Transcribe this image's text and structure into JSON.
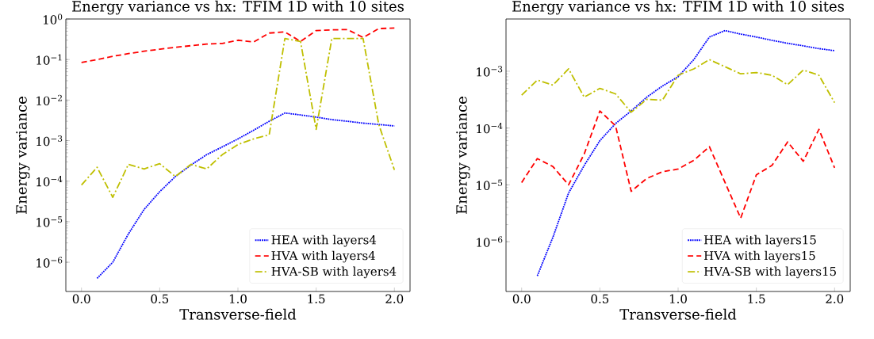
{
  "chart_data": [
    {
      "type": "line",
      "title": "Energy variance vs hx: TFIM 1D with 10 sites",
      "xlabel": "Transverse-field",
      "ylabel": "Energy variance",
      "log": "y",
      "legend": "bottom right",
      "grid": false,
      "x": [
        0.0,
        0.1,
        0.2,
        0.3,
        0.4,
        0.5,
        0.6,
        0.7,
        0.8,
        0.9,
        1.0,
        1.1,
        1.2,
        1.3,
        1.4,
        1.5,
        1.6,
        1.7,
        1.8,
        1.9,
        2.0
      ],
      "xlim": [
        -0.1,
        2.1
      ],
      "xticks": [
        {
          "value": 0,
          "label": "0.0"
        },
        {
          "value": 0.5,
          "label": "0.5"
        },
        {
          "value": 1,
          "label": "1.0"
        },
        {
          "value": 1.5,
          "label": "1.5"
        },
        {
          "value": 2,
          "label": "2.0"
        }
      ],
      "ylim": [
        1.9e-07,
        1
      ],
      "yticks": [
        {
          "value": 1e-06,
          "label": "10$^{−6}$"
        },
        {
          "value": 1e-05,
          "label": "10$^{−5}$"
        },
        {
          "value": 0.0001,
          "label": "10$^{−4}$"
        },
        {
          "value": 0.001,
          "label": "10$^{−3}$"
        },
        {
          "value": 0.01,
          "label": "10$^{−2}$"
        },
        {
          "value": 0.1,
          "label": "10$^{−1}$"
        },
        {
          "value": 1,
          "label": "10$^{0}$"
        }
      ],
      "series": [
        {
          "name": "HEA with layers4",
          "color": "#0000ff",
          "line_style": "dotted",
          "values": [
            null,
            4e-07,
            1e-06,
            5e-06,
            2e-05,
            5.5e-05,
            0.00013,
            0.00025,
            0.00045,
            0.0007,
            0.0011,
            0.0018,
            0.003,
            0.0048,
            0.0043,
            0.0038,
            0.0033,
            0.003,
            0.0027,
            0.0025,
            0.0023
          ]
        },
        {
          "name": "HVA with layers4",
          "color": "#ff0000",
          "line_style": "dashed",
          "values": [
            0.085,
            0.1,
            0.12,
            0.14,
            0.16,
            0.18,
            0.2,
            0.22,
            0.24,
            0.25,
            0.3,
            0.27,
            0.45,
            0.48,
            0.28,
            0.52,
            0.54,
            0.55,
            0.35,
            0.58,
            0.6
          ]
        },
        {
          "name": "HVA-SB with layers4",
          "color": "#bfbf00",
          "line_style": "dashdot",
          "values": [
            8e-05,
            0.00022,
            4e-05,
            0.00026,
            0.0002,
            0.00027,
            0.00013,
            0.00026,
            0.0002,
            0.00045,
            0.0008,
            0.0011,
            0.0014,
            0.33,
            0.28,
            0.0019,
            0.33,
            0.33,
            0.33,
            0.0025,
            0.00019
          ]
        }
      ]
    },
    {
      "type": "line",
      "title": "Energy variance vs hx: TFIM 1D with 10 sites",
      "xlabel": "Transverse-field",
      "ylabel": "Energy variance",
      "log": "y",
      "legend": "bottom right",
      "grid": false,
      "x": [
        0.0,
        0.1,
        0.2,
        0.3,
        0.4,
        0.5,
        0.6,
        0.7,
        0.8,
        0.9,
        1.0,
        1.1,
        1.2,
        1.3,
        1.4,
        1.5,
        1.6,
        1.7,
        1.8,
        1.9,
        2.0
      ],
      "xlim": [
        -0.1,
        2.1
      ],
      "xticks": [
        {
          "value": 0,
          "label": "0.0"
        },
        {
          "value": 0.5,
          "label": "0.5"
        },
        {
          "value": 1,
          "label": "1.0"
        },
        {
          "value": 1.5,
          "label": "1.5"
        },
        {
          "value": 2,
          "label": "2.0"
        }
      ],
      "ylim": [
        1.33e-07,
        0.0083
      ],
      "yticks": [
        {
          "value": 1e-06,
          "label": "10$^{−6}$"
        },
        {
          "value": 1e-05,
          "label": "10$^{−5}$"
        },
        {
          "value": 0.0001,
          "label": "10$^{−4}$"
        },
        {
          "value": 0.001,
          "label": "10$^{−3}$"
        }
      ],
      "series": [
        {
          "name": "HEA with layers15",
          "color": "#0000ff",
          "line_style": "dotted",
          "values": [
            null,
            2.5e-07,
            1.2e-06,
            7.2e-06,
            2.2e-05,
            6e-05,
            0.00012,
            0.0002,
            0.00035,
            0.00055,
            0.0008,
            0.0016,
            0.004,
            0.0052,
            0.0045,
            0.004,
            0.0035,
            0.0031,
            0.0028,
            0.0025,
            0.0023
          ]
        },
        {
          "name": "HVA with layers15",
          "color": "#ff0000",
          "line_style": "dashed",
          "values": [
            1.1e-05,
            2.9e-05,
            2.1e-05,
            1e-05,
            3.5e-05,
            0.0002,
            0.00011,
            7.7e-06,
            1.3e-05,
            1.7e-05,
            1.9e-05,
            2.7e-05,
            4.7e-05,
            1.1e-05,
            2.6e-06,
            1.5e-05,
            2.2e-05,
            5.7e-05,
            2.6e-05,
            9.5e-05,
            2e-05
          ]
        },
        {
          "name": "HVA-SB with layers15",
          "color": "#bfbf00",
          "line_style": "dashdot",
          "values": [
            0.00038,
            0.0007,
            0.00057,
            0.0011,
            0.00035,
            0.0005,
            0.0004,
            0.00019,
            0.00032,
            0.00031,
            0.00085,
            0.0011,
            0.0016,
            0.0012,
            0.0009,
            0.00095,
            0.00085,
            0.00058,
            0.00105,
            0.00085,
            0.00028
          ]
        }
      ]
    }
  ]
}
